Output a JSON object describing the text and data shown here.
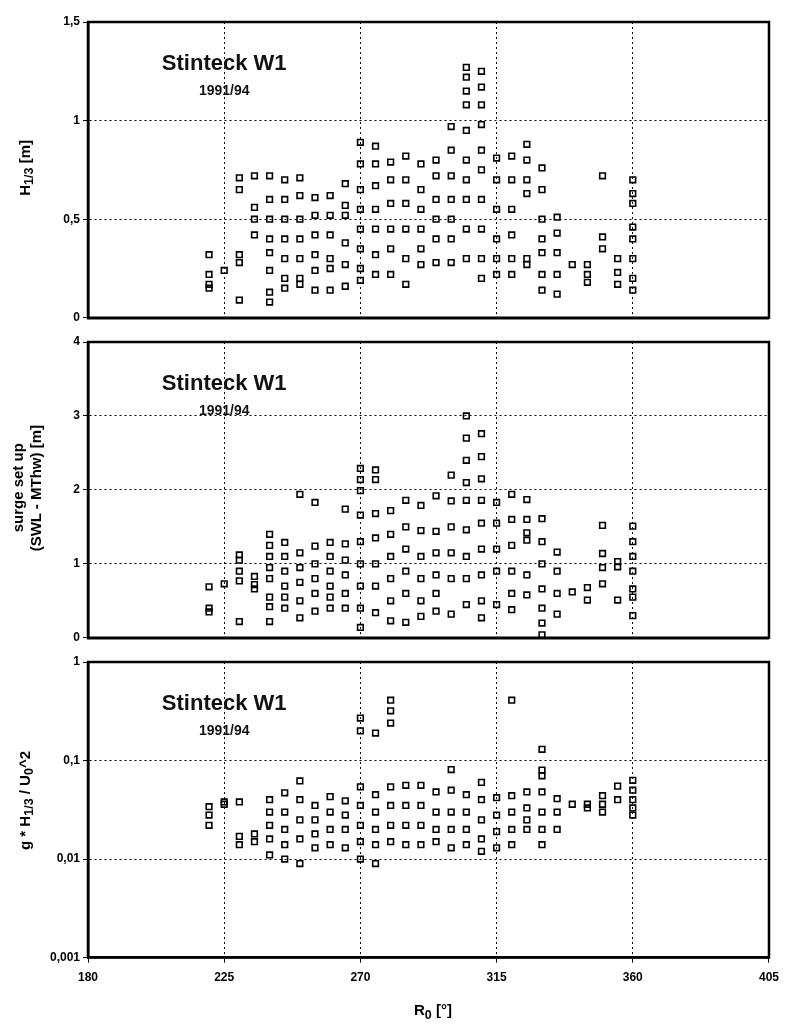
{
  "chart_data": [
    {
      "type": "scatter",
      "ylabel": "H$_{1/3}$ [m]",
      "annotations": [
        "Stinteck W1",
        "1991/94"
      ],
      "marker": "square",
      "grid": true,
      "tick_labels": "y",
      "xlim": [
        180,
        405
      ],
      "xticks": [
        180,
        225,
        270,
        315,
        360,
        405
      ],
      "ylim": [
        0,
        1.5
      ],
      "yticks": [
        0,
        {
          "value": 0.5,
          "label": "0,5"
        },
        1,
        {
          "value": 1.5,
          "label": "1,5"
        }
      ],
      "x": [
        220,
        220,
        220,
        220,
        225,
        230,
        230,
        230,
        230,
        230,
        235,
        235,
        235,
        235,
        240,
        240,
        240,
        240,
        240,
        240,
        240,
        240,
        245,
        245,
        245,
        245,
        245,
        245,
        245,
        250,
        250,
        250,
        250,
        250,
        250,
        250,
        255,
        255,
        255,
        255,
        255,
        255,
        260,
        260,
        260,
        260,
        260,
        260,
        265,
        265,
        265,
        265,
        265,
        265,
        270,
        270,
        270,
        270,
        270,
        270,
        270,
        270,
        275,
        275,
        275,
        275,
        275,
        275,
        275,
        280,
        280,
        280,
        280,
        280,
        280,
        285,
        285,
        285,
        285,
        285,
        285,
        290,
        290,
        290,
        290,
        290,
        290,
        295,
        295,
        295,
        295,
        295,
        295,
        300,
        300,
        300,
        300,
        300,
        300,
        300,
        305,
        305,
        305,
        305,
        305,
        305,
        305,
        305,
        305,
        305,
        310,
        310,
        310,
        310,
        310,
        310,
        310,
        310,
        310,
        310,
        315,
        315,
        315,
        315,
        315,
        315,
        320,
        320,
        320,
        320,
        320,
        320,
        325,
        325,
        325,
        325,
        325,
        325,
        330,
        330,
        330,
        330,
        330,
        330,
        330,
        335,
        335,
        335,
        335,
        335,
        340,
        345,
        345,
        345,
        350,
        350,
        350,
        355,
        355,
        355,
        360,
        360,
        360,
        360,
        360,
        360,
        360,
        360
      ],
      "series": [
        {
          "color": "#000000",
          "values": [
            0.32,
            0.22,
            0.17,
            0.15,
            0.24,
            0.71,
            0.65,
            0.32,
            0.28,
            0.09,
            0.72,
            0.56,
            0.5,
            0.42,
            0.72,
            0.6,
            0.5,
            0.4,
            0.33,
            0.24,
            0.13,
            0.08,
            0.7,
            0.6,
            0.5,
            0.4,
            0.3,
            0.2,
            0.15,
            0.71,
            0.62,
            0.5,
            0.4,
            0.3,
            0.2,
            0.17,
            0.61,
            0.52,
            0.42,
            0.32,
            0.24,
            0.14,
            0.62,
            0.52,
            0.42,
            0.3,
            0.25,
            0.14,
            0.68,
            0.57,
            0.52,
            0.38,
            0.27,
            0.16,
            0.89,
            0.78,
            0.65,
            0.55,
            0.45,
            0.35,
            0.25,
            0.19,
            0.87,
            0.78,
            0.67,
            0.55,
            0.45,
            0.32,
            0.22,
            0.79,
            0.7,
            0.58,
            0.45,
            0.35,
            0.22,
            0.82,
            0.7,
            0.58,
            0.45,
            0.3,
            0.17,
            0.78,
            0.65,
            0.55,
            0.45,
            0.35,
            0.27,
            0.8,
            0.72,
            0.6,
            0.5,
            0.4,
            0.28,
            0.97,
            0.85,
            0.72,
            0.6,
            0.5,
            0.4,
            0.28,
            1.27,
            1.22,
            1.15,
            1.08,
            0.95,
            0.8,
            0.7,
            0.6,
            0.45,
            0.3,
            1.25,
            1.17,
            1.08,
            0.98,
            0.85,
            0.75,
            0.6,
            0.45,
            0.3,
            0.2,
            0.81,
            0.7,
            0.55,
            0.4,
            0.3,
            0.22,
            0.82,
            0.7,
            0.55,
            0.42,
            0.3,
            0.22,
            0.88,
            0.8,
            0.7,
            0.63,
            0.3,
            0.27,
            0.76,
            0.65,
            0.5,
            0.4,
            0.33,
            0.22,
            0.14,
            0.51,
            0.43,
            0.33,
            0.22,
            0.12,
            0.27,
            0.27,
            0.22,
            0.18,
            0.72,
            0.41,
            0.35,
            0.3,
            0.23,
            0.17,
            0.7,
            0.63,
            0.58,
            0.46,
            0.4,
            0.3,
            0.2,
            0.14
          ]
        }
      ]
    },
    {
      "type": "scatter",
      "ylabel": "surge set up\n(SWL - MThw) [m]",
      "annotations": [
        "Stinteck W1",
        "1991/94"
      ],
      "marker": "square",
      "grid": true,
      "tick_labels": "y",
      "xlim": [
        180,
        405
      ],
      "xticks": [
        180,
        225,
        270,
        315,
        360,
        405
      ],
      "ylim": [
        0,
        4
      ],
      "yticks": [
        0,
        1,
        2,
        3,
        4
      ],
      "x": [
        220,
        220,
        220,
        225,
        230,
        230,
        230,
        230,
        230,
        235,
        235,
        235,
        240,
        240,
        240,
        240,
        240,
        240,
        240,
        240,
        245,
        245,
        245,
        245,
        245,
        245,
        250,
        250,
        250,
        250,
        250,
        250,
        255,
        255,
        255,
        255,
        255,
        255,
        260,
        260,
        260,
        260,
        260,
        260,
        265,
        265,
        265,
        265,
        265,
        265,
        270,
        270,
        270,
        270,
        270,
        270,
        270,
        270,
        270,
        275,
        275,
        275,
        275,
        275,
        275,
        275,
        280,
        280,
        280,
        280,
        280,
        280,
        285,
        285,
        285,
        285,
        285,
        285,
        290,
        290,
        290,
        290,
        290,
        290,
        295,
        295,
        295,
        295,
        295,
        295,
        300,
        300,
        300,
        300,
        300,
        300,
        305,
        305,
        305,
        305,
        305,
        305,
        305,
        305,
        305,
        310,
        310,
        310,
        310,
        310,
        310,
        310,
        310,
        310,
        315,
        315,
        315,
        315,
        315,
        320,
        320,
        320,
        320,
        320,
        320,
        325,
        325,
        325,
        325,
        325,
        325,
        330,
        330,
        330,
        330,
        330,
        330,
        330,
        335,
        335,
        335,
        335,
        340,
        345,
        345,
        350,
        350,
        350,
        350,
        355,
        355,
        355,
        360,
        360,
        360,
        360,
        360,
        360,
        360
      ],
      "series": [
        {
          "color": "#000000",
          "values": [
            0.69,
            0.4,
            0.35,
            0.73,
            1.12,
            1.05,
            0.9,
            0.77,
            0.22,
            0.83,
            0.72,
            0.66,
            1.4,
            1.25,
            1.1,
            0.95,
            0.8,
            0.55,
            0.42,
            0.22,
            1.29,
            1.1,
            0.9,
            0.7,
            0.55,
            0.4,
            1.94,
            1.15,
            0.95,
            0.75,
            0.5,
            0.27,
            1.83,
            1.24,
            1.0,
            0.8,
            0.6,
            0.36,
            1.29,
            1.1,
            0.9,
            0.7,
            0.55,
            0.4,
            1.74,
            1.27,
            1.05,
            0.85,
            0.6,
            0.4,
            2.29,
            2.14,
            1.99,
            1.66,
            1.3,
            1.0,
            0.7,
            0.4,
            0.14,
            2.27,
            2.14,
            1.68,
            1.35,
            1.0,
            0.7,
            0.34,
            1.72,
            1.4,
            1.1,
            0.8,
            0.5,
            0.23,
            1.86,
            1.5,
            1.2,
            0.9,
            0.6,
            0.21,
            1.79,
            1.45,
            1.1,
            0.8,
            0.5,
            0.29,
            1.92,
            1.44,
            1.15,
            0.85,
            0.6,
            0.36,
            2.2,
            1.85,
            1.5,
            1.15,
            0.8,
            0.32,
            3.0,
            2.7,
            2.4,
            2.1,
            1.86,
            1.46,
            1.1,
            0.8,
            0.45,
            2.76,
            2.45,
            2.15,
            1.86,
            1.55,
            1.2,
            0.85,
            0.5,
            0.27,
            1.83,
            1.55,
            1.2,
            0.9,
            0.45,
            1.94,
            1.6,
            1.25,
            0.9,
            0.6,
            0.38,
            1.87,
            1.6,
            1.42,
            1.32,
            0.85,
            0.58,
            1.61,
            1.3,
            1.0,
            0.66,
            0.4,
            0.2,
            0.04,
            1.16,
            0.9,
            0.6,
            0.32,
            0.62,
            0.68,
            0.51,
            1.52,
            1.14,
            0.95,
            0.73,
            1.03,
            0.96,
            0.51,
            1.51,
            1.3,
            1.1,
            0.9,
            0.66,
            0.55,
            0.3
          ]
        }
      ]
    },
    {
      "type": "scatter",
      "ylabel": "g * H$_{1/3}$ / U$_{0}$^2",
      "xlabel": "R$_{0}$ [°]",
      "annotations": [
        "Stinteck W1",
        "1991/94"
      ],
      "marker": "square",
      "grid": true,
      "log": "y",
      "xlim": [
        180,
        405
      ],
      "xticks": [
        180,
        225,
        270,
        315,
        360,
        405
      ],
      "ylim": [
        0.001,
        1
      ],
      "yticks": [
        {
          "value": 0.001,
          "label": "0,001"
        },
        {
          "value": 0.01,
          "label": "0,01"
        },
        {
          "value": 0.1,
          "label": "0,1"
        },
        1
      ],
      "x": [
        220,
        220,
        220,
        225,
        225,
        230,
        230,
        230,
        235,
        235,
        240,
        240,
        240,
        240,
        240,
        245,
        245,
        245,
        245,
        245,
        250,
        250,
        250,
        250,
        250,
        255,
        255,
        255,
        255,
        260,
        260,
        260,
        260,
        265,
        265,
        265,
        265,
        270,
        270,
        270,
        270,
        270,
        270,
        270,
        275,
        275,
        275,
        275,
        275,
        275,
        280,
        280,
        280,
        280,
        280,
        280,
        280,
        285,
        285,
        285,
        285,
        290,
        290,
        290,
        290,
        295,
        295,
        295,
        295,
        300,
        300,
        300,
        300,
        300,
        305,
        305,
        305,
        305,
        310,
        310,
        310,
        310,
        310,
        315,
        315,
        315,
        315,
        320,
        320,
        320,
        320,
        320,
        325,
        325,
        325,
        325,
        330,
        330,
        330,
        330,
        330,
        330,
        330,
        335,
        335,
        335,
        340,
        345,
        345,
        350,
        350,
        350,
        355,
        355,
        360,
        360,
        360,
        360,
        360
      ],
      "series": [
        {
          "color": "#000000",
          "values": [
            0.034,
            0.028,
            0.022,
            0.038,
            0.036,
            0.038,
            0.017,
            0.014,
            0.018,
            0.015,
            0.04,
            0.03,
            0.022,
            0.016,
            0.011,
            0.047,
            0.03,
            0.02,
            0.014,
            0.01,
            0.062,
            0.04,
            0.025,
            0.016,
            0.009,
            0.035,
            0.025,
            0.018,
            0.013,
            0.043,
            0.03,
            0.02,
            0.014,
            0.039,
            0.028,
            0.02,
            0.013,
            0.27,
            0.2,
            0.054,
            0.035,
            0.022,
            0.015,
            0.01,
            0.19,
            0.045,
            0.03,
            0.02,
            0.014,
            0.009,
            0.41,
            0.32,
            0.24,
            0.054,
            0.035,
            0.022,
            0.015,
            0.056,
            0.035,
            0.022,
            0.014,
            0.056,
            0.035,
            0.022,
            0.014,
            0.048,
            0.03,
            0.02,
            0.015,
            0.081,
            0.05,
            0.03,
            0.02,
            0.013,
            0.045,
            0.03,
            0.02,
            0.014,
            0.06,
            0.04,
            0.025,
            0.016,
            0.012,
            0.042,
            0.028,
            0.019,
            0.013,
            0.41,
            0.044,
            0.03,
            0.02,
            0.014,
            0.048,
            0.033,
            0.025,
            0.02,
            0.13,
            0.08,
            0.07,
            0.048,
            0.03,
            0.02,
            0.014,
            0.041,
            0.03,
            0.02,
            0.036,
            0.036,
            0.033,
            0.044,
            0.036,
            0.03,
            0.055,
            0.04,
            0.063,
            0.05,
            0.04,
            0.033,
            0.028
          ]
        }
      ]
    }
  ]
}
